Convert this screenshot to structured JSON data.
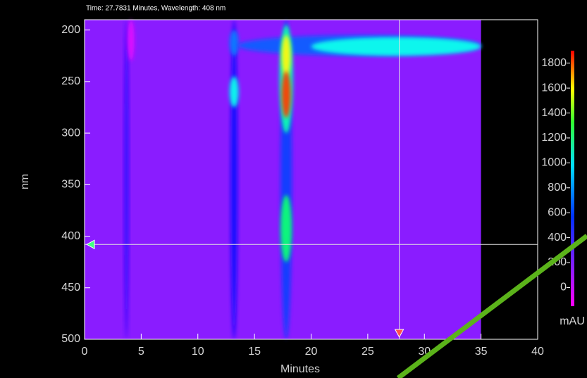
{
  "chart_data": {
    "type": "heatmap",
    "title": "Time: 27.7831 Minutes, Wavelength: 408 nm",
    "x_label": "Minutes",
    "y_label": "nm",
    "xlim": [
      0,
      40
    ],
    "xticks": [
      0,
      5,
      10,
      15,
      20,
      25,
      30,
      35,
      40
    ],
    "ylim": [
      190,
      500
    ],
    "yticks": [
      200,
      250,
      300,
      350,
      400,
      450,
      500
    ],
    "y_reversed": true,
    "data_end": 35,
    "plot_color": "#8a1cff",
    "cursor": {
      "time": 27.7831,
      "wavelength": 408
    },
    "colorbar": {
      "label": "mAU",
      "lim": [
        -150,
        1900
      ],
      "ticks": [
        0,
        200,
        400,
        600,
        800,
        1000,
        1200,
        1400,
        1600,
        1800
      ]
    },
    "features": [
      {
        "time": [
          3.5,
          3.9
        ],
        "wavelength": [
          190,
          500
        ],
        "intensity": 200
      },
      {
        "time": [
          3.8,
          4.4
        ],
        "wavelength": [
          190,
          230
        ],
        "intensity": -100
      },
      {
        "time": [
          12.9,
          13.5
        ],
        "wavelength": [
          190,
          500
        ],
        "intensity": 250
      },
      {
        "time": [
          12.8,
          13.6
        ],
        "wavelength": [
          200,
          225
        ],
        "intensity": 450
      },
      {
        "time": [
          12.8,
          13.6
        ],
        "wavelength": [
          245,
          275
        ],
        "intensity": 700
      },
      {
        "time": [
          13.5,
          35
        ],
        "wavelength": [
          205,
          225
        ],
        "intensity": 400
      },
      {
        "time": [
          20,
          35
        ],
        "wavelength": [
          207,
          225
        ],
        "intensity": 700
      },
      {
        "time": [
          17.3,
          18.3
        ],
        "wavelength": [
          190,
          500
        ],
        "intensity": 350
      },
      {
        "time": [
          17.2,
          18.4
        ],
        "wavelength": [
          195,
          300
        ],
        "intensity": 800
      },
      {
        "time": [
          17.4,
          18.2
        ],
        "wavelength": [
          205,
          245
        ],
        "intensity": 1500
      },
      {
        "time": [
          17.4,
          18.2
        ],
        "wavelength": [
          240,
          285
        ],
        "intensity": 1800
      },
      {
        "time": [
          17.3,
          18.3
        ],
        "wavelength": [
          360,
          425
        ],
        "intensity": 900
      }
    ]
  }
}
